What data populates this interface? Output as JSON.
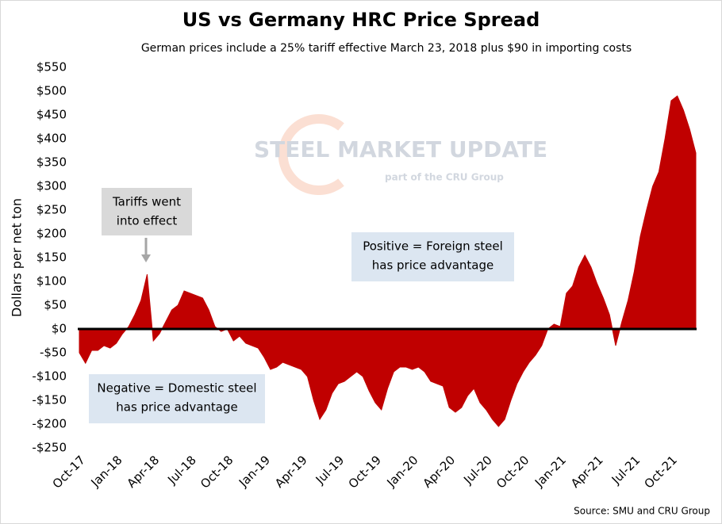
{
  "chart_data": {
    "type": "area",
    "title": "US vs Germany HRC Price Spread",
    "subtitle": "German prices include a 25% tariff effective March 23, 2018 plus $90 in importing costs",
    "y_label": "Dollars per net ton",
    "source": "Source: SMU and CRU Group",
    "watermark": [
      "STEEL MARKET UPDATE",
      "part of the CRU Group"
    ],
    "annotations": [
      {
        "lines": [
          "Tariffs went",
          "into effect"
        ]
      },
      {
        "lines": [
          "Positive = Foreign steel",
          "has price advantage"
        ]
      },
      {
        "lines": [
          "Negative = Domestic steel",
          "has price advantage"
        ]
      }
    ],
    "color": "#c00000",
    "categories": [
      "Oct-17",
      null,
      null,
      null,
      null,
      null,
      "Jan-18",
      null,
      null,
      null,
      null,
      null,
      "Apr-18",
      null,
      null,
      null,
      null,
      null,
      "Jul-18",
      null,
      null,
      null,
      null,
      null,
      "Oct-18",
      null,
      null,
      null,
      null,
      null,
      "Jan-19",
      null,
      null,
      null,
      null,
      null,
      "Apr-19",
      null,
      null,
      null,
      null,
      null,
      "Jul-19",
      null,
      null,
      null,
      null,
      null,
      "Oct-19",
      null,
      null,
      null,
      null,
      null,
      "Jan-20",
      null,
      null,
      null,
      null,
      null,
      "Apr-20",
      null,
      null,
      null,
      null,
      null,
      "Jul-20",
      null,
      null,
      null,
      null,
      null,
      "Oct-20",
      null,
      null,
      null,
      null,
      null,
      "Jan-21",
      null,
      null,
      null,
      null,
      null,
      "Apr-21",
      null,
      null,
      null,
      null,
      null,
      "Jul-21",
      null,
      null,
      null,
      null,
      null,
      "Oct-21",
      null,
      null,
      null,
      null
    ],
    "values": [
      -50,
      -72,
      -45,
      -45,
      -35,
      -40,
      -30,
      -10,
      5,
      30,
      60,
      115,
      -25,
      -10,
      15,
      40,
      50,
      80,
      75,
      70,
      65,
      40,
      5,
      -5,
      0,
      -25,
      -15,
      -30,
      -35,
      -40,
      -60,
      -85,
      -80,
      -70,
      -75,
      -80,
      -85,
      -100,
      -150,
      -190,
      -170,
      -135,
      -115,
      -110,
      -100,
      -90,
      -100,
      -130,
      -155,
      -170,
      -125,
      -90,
      -80,
      -80,
      -85,
      -80,
      -90,
      -110,
      -115,
      -120,
      -165,
      -175,
      -165,
      -140,
      -125,
      -155,
      -170,
      -190,
      -205,
      -190,
      -150,
      -115,
      -90,
      -70,
      -55,
      -35,
      0,
      10,
      5,
      75,
      90,
      130,
      155,
      130,
      95,
      65,
      30,
      -35,
      15,
      60,
      120,
      195,
      250,
      300,
      330,
      400,
      480,
      490,
      460,
      420,
      370
    ],
    "ylim": [
      -250,
      550
    ],
    "yticks": [
      {
        "value": -250,
        "label": "-$250"
      },
      {
        "value": -200,
        "label": "-$200"
      },
      {
        "value": -150,
        "label": "-$150"
      },
      {
        "value": -100,
        "label": "-$100"
      },
      {
        "value": -50,
        "label": "-$50"
      },
      {
        "value": 0,
        "label": "$0"
      },
      {
        "value": 50,
        "label": "$50"
      },
      {
        "value": 100,
        "label": "$100"
      },
      {
        "value": 150,
        "label": "$150"
      },
      {
        "value": 200,
        "label": "$200"
      },
      {
        "value": 250,
        "label": "$250"
      },
      {
        "value": 300,
        "label": "$300"
      },
      {
        "value": 350,
        "label": "$350"
      },
      {
        "value": 400,
        "label": "$400"
      },
      {
        "value": 450,
        "label": "$450"
      },
      {
        "value": 500,
        "label": "$500"
      },
      {
        "value": 550,
        "label": "$550"
      }
    ]
  }
}
